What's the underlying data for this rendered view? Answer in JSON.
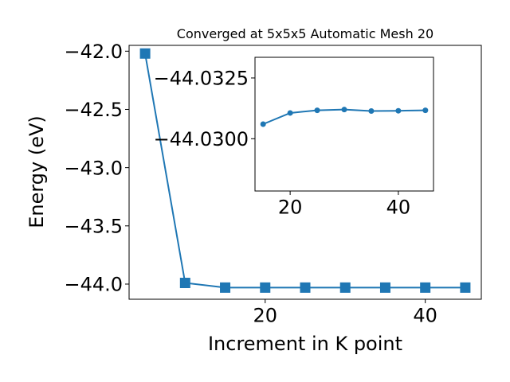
{
  "chart_data": [
    {
      "type": "line",
      "title": "Converged at 5x5x5 Automatic Mesh 20",
      "xlabel": "Increment in K point",
      "ylabel": "Energy (eV)",
      "xlim": [
        3.0,
        47.0
      ],
      "ylim": [
        -44.13,
        -41.95
      ],
      "xticks": [
        20,
        40
      ],
      "xtick_labels": [
        "20",
        "40"
      ],
      "yticks": [
        -42.0,
        -42.5,
        -43.0,
        -43.5,
        -44.0
      ],
      "ytick_labels": [
        "−42.0",
        "−42.5",
        "−43.0",
        "−43.5",
        "−44.0"
      ],
      "marker": "square",
      "color": "#1f77b4",
      "series": [
        {
          "x": [
            5,
            10,
            15,
            20,
            25,
            30,
            35,
            40,
            45
          ],
          "y": [
            -42.02,
            -43.99,
            -44.03,
            -44.03,
            -44.03,
            -44.03,
            -44.03,
            -44.03,
            -44.03
          ]
        }
      ]
    },
    {
      "type": "line",
      "title": "",
      "xlabel": "",
      "ylabel": "",
      "xlim": [
        13.5,
        46.5
      ],
      "ylim": [
        -44.03335,
        -44.02785
      ],
      "yaxis_inverted": true,
      "xticks": [
        20,
        40
      ],
      "xtick_labels": [
        "20",
        "40"
      ],
      "yticks": [
        -44.0325,
        -44.03
      ],
      "ytick_labels": [
        "−44.0325",
        "−44.0300"
      ],
      "marker": "circle",
      "color": "#1f77b4",
      "series": [
        {
          "x": [
            15,
            20,
            25,
            30,
            35,
            40,
            45
          ],
          "y": [
            -44.0306,
            -44.03106,
            -44.03117,
            -44.0312,
            -44.03114,
            -44.03115,
            -44.03117
          ]
        }
      ]
    }
  ]
}
